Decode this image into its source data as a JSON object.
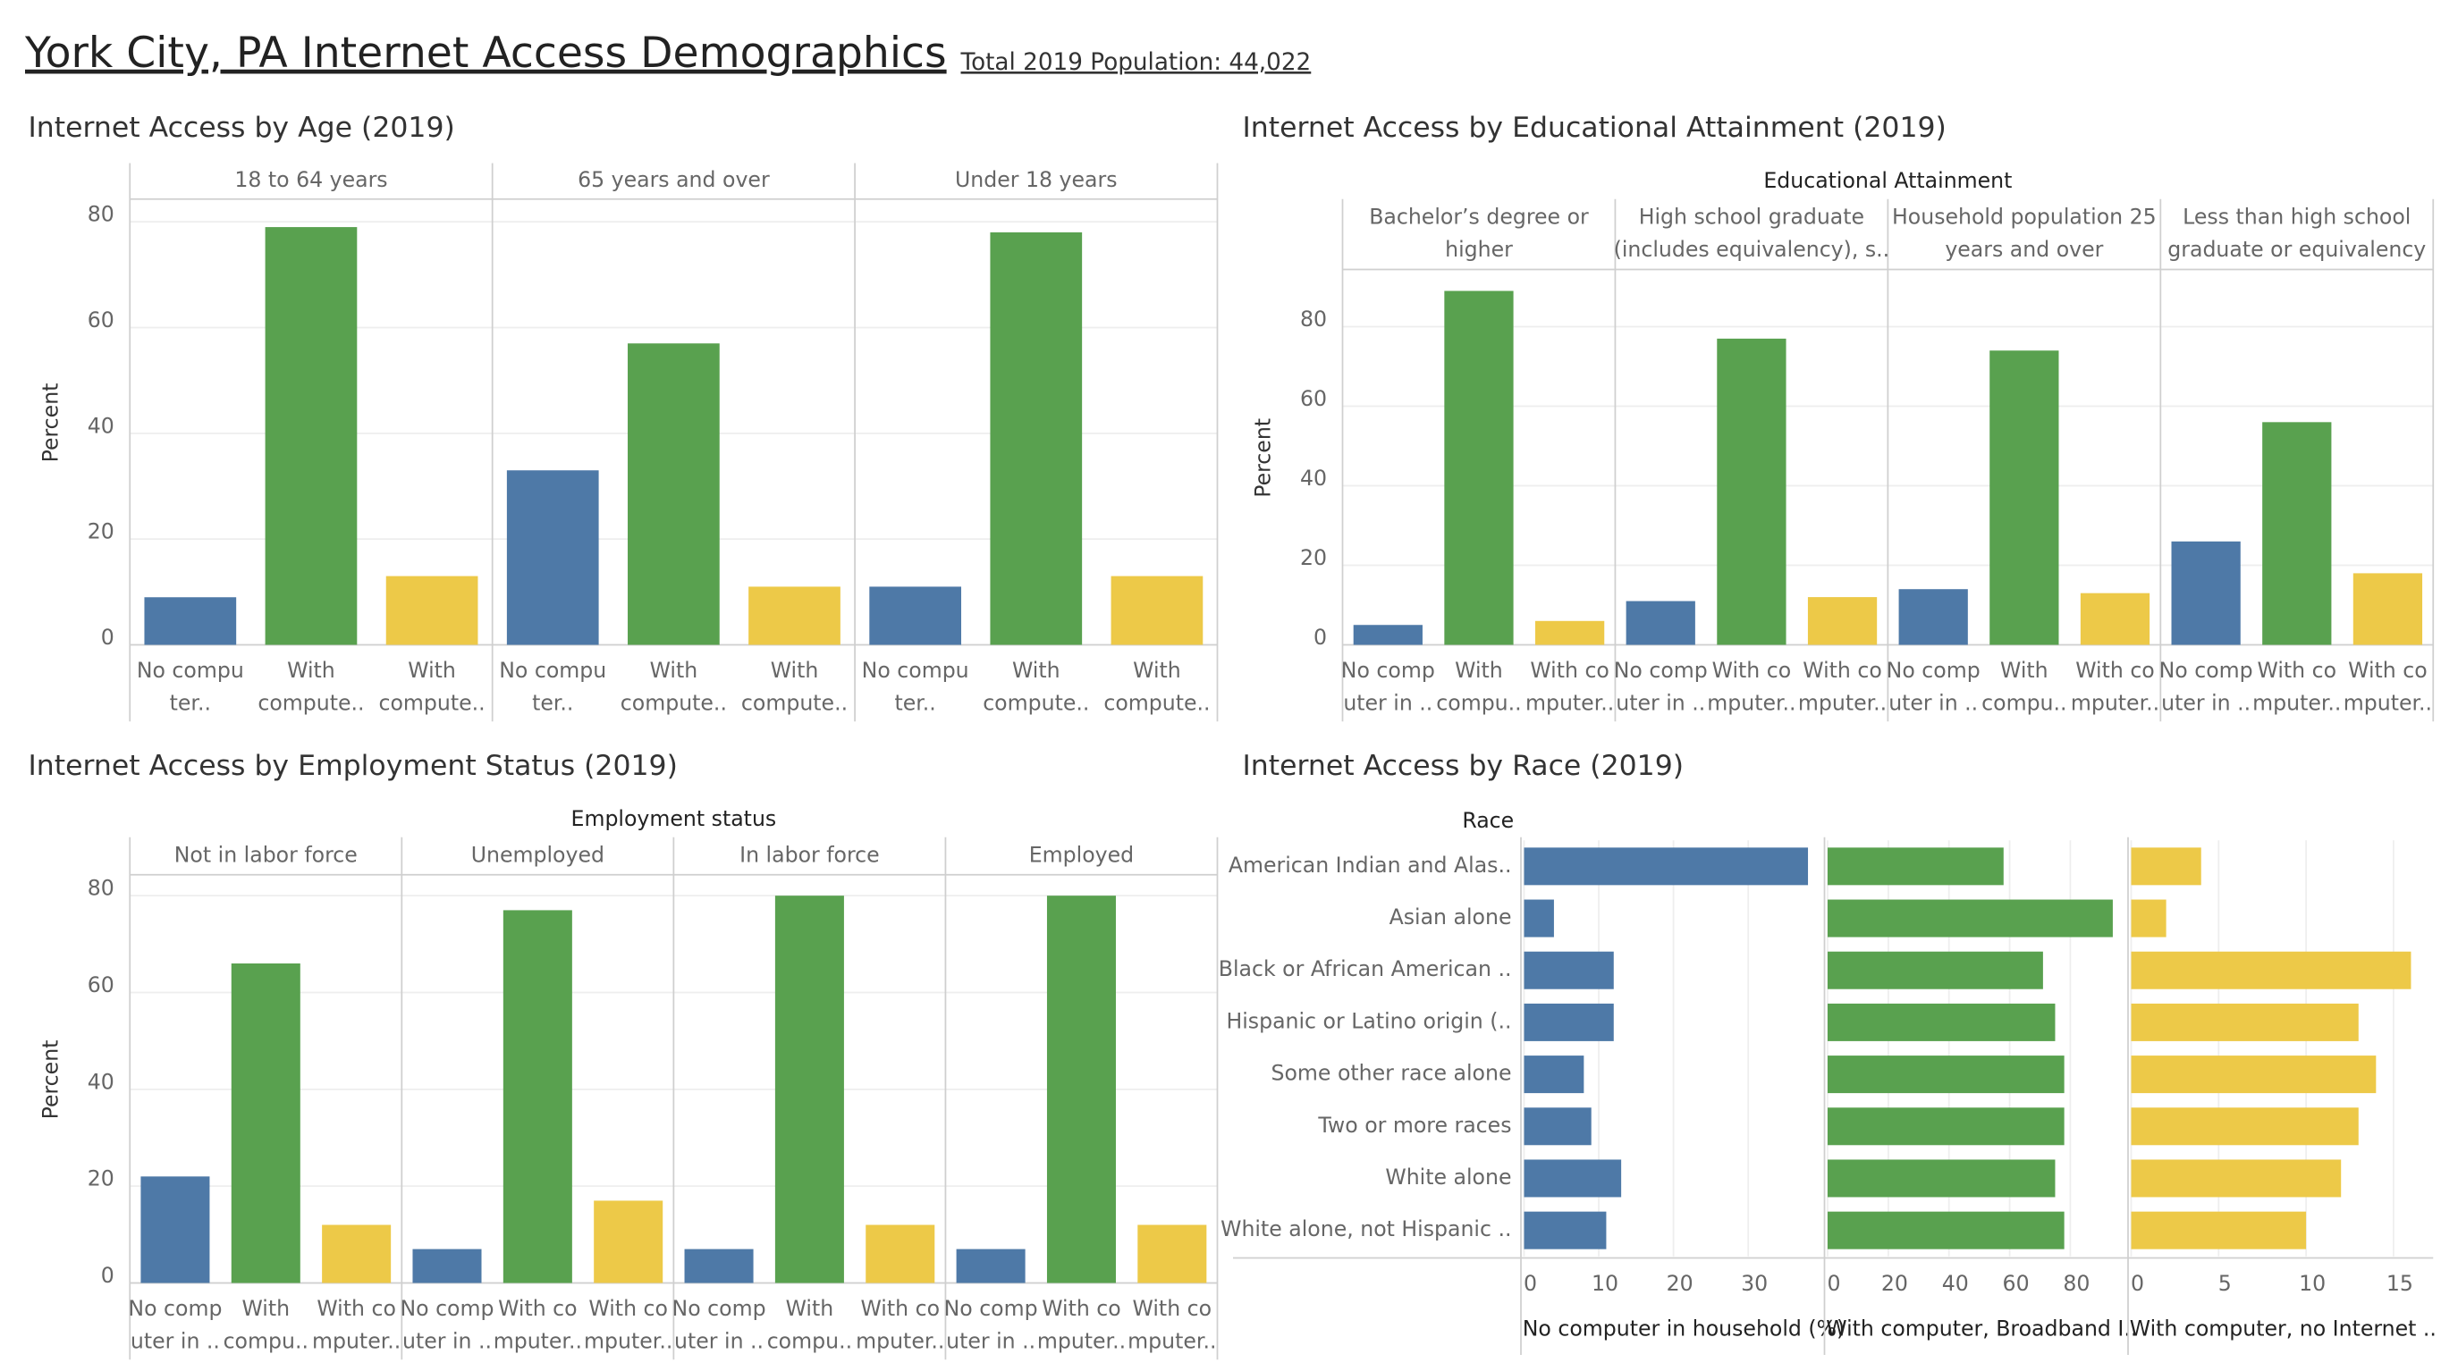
{
  "dashboard": {
    "title": "York City, PA Internet Access Demographics",
    "population_note": "Total 2019 Population: 44,022"
  },
  "chart_data": [
    {
      "type": "faceted_bar",
      "title": "Internet Access by Age (2019)",
      "ylabel": "Percent",
      "colors": [
        "#4e79a7",
        "#59a14f",
        "#edc948"
      ],
      "ylim": [
        0,
        84
      ],
      "yticks": [
        0,
        20,
        40,
        60,
        80
      ],
      "grid": true,
      "facets": [
        {
          "name": [
            "18 to 64 years"
          ],
          "labels": [
            [
              "No compu",
              "ter.."
            ],
            [
              "With",
              "compute.."
            ],
            [
              "With",
              "compute.."
            ]
          ],
          "values": [
            9,
            79,
            13
          ]
        },
        {
          "name": [
            "65 years and over"
          ],
          "labels": [
            [
              "No compu",
              "ter.."
            ],
            [
              "With",
              "compute.."
            ],
            [
              "With",
              "compute.."
            ]
          ],
          "values": [
            33,
            57,
            11
          ]
        },
        {
          "name": [
            "Under 18 years"
          ],
          "labels": [
            [
              "No compu",
              "ter.."
            ],
            [
              "With",
              "compute.."
            ],
            [
              "With",
              "compute.."
            ]
          ],
          "values": [
            11,
            78,
            13
          ]
        }
      ]
    },
    {
      "type": "faceted_bar",
      "title": "Internet Access by Educational Attainment (2019)",
      "ylabel": "Percent",
      "facet_title": "Educational Attainment",
      "colors": [
        "#4e79a7",
        "#59a14f",
        "#edc948"
      ],
      "ylim": [
        0,
        94
      ],
      "yticks": [
        0,
        20,
        40,
        60,
        80
      ],
      "grid": true,
      "facets": [
        {
          "name": [
            "Bachelor’s degree or",
            "higher"
          ],
          "labels": [
            [
              "No comp",
              "uter in .."
            ],
            [
              "With",
              "compu.."
            ],
            [
              "With co",
              "mputer.."
            ]
          ],
          "values": [
            5,
            89,
            6
          ]
        },
        {
          "name": [
            "High school graduate",
            "(includes equivalency), s.."
          ],
          "labels": [
            [
              "No comp",
              "uter in .."
            ],
            [
              "With co",
              "mputer.."
            ],
            [
              "With co",
              "mputer.."
            ]
          ],
          "values": [
            11,
            77,
            12
          ]
        },
        {
          "name": [
            "Household population 25",
            "years and over"
          ],
          "labels": [
            [
              "No comp",
              "uter in .."
            ],
            [
              "With",
              "compu.."
            ],
            [
              "With co",
              "mputer.."
            ]
          ],
          "values": [
            14,
            74,
            13
          ]
        },
        {
          "name": [
            "Less than high school",
            "graduate or equivalency"
          ],
          "labels": [
            [
              "No comp",
              "uter in .."
            ],
            [
              "With co",
              "mputer.."
            ],
            [
              "With co",
              "mputer.."
            ]
          ],
          "values": [
            26,
            56,
            18
          ]
        }
      ]
    },
    {
      "type": "faceted_bar",
      "title": "Internet Access by Employment Status (2019)",
      "ylabel": "Percent",
      "facet_title": "Employment status",
      "colors": [
        "#4e79a7",
        "#59a14f",
        "#edc948"
      ],
      "ylim": [
        0,
        84
      ],
      "yticks": [
        0,
        20,
        40,
        60,
        80
      ],
      "grid": true,
      "facets": [
        {
          "name": [
            "Not in labor force"
          ],
          "labels": [
            [
              "No comp",
              "uter in .."
            ],
            [
              "With",
              "compu.."
            ],
            [
              "With co",
              "mputer.."
            ]
          ],
          "values": [
            22,
            66,
            12
          ]
        },
        {
          "name": [
            "Unemployed"
          ],
          "labels": [
            [
              "No comp",
              "uter in .."
            ],
            [
              "With co",
              "mputer.."
            ],
            [
              "With co",
              "mputer.."
            ]
          ],
          "values": [
            7,
            77,
            17
          ]
        },
        {
          "name": [
            "In labor force"
          ],
          "labels": [
            [
              "No comp",
              "uter in .."
            ],
            [
              "With",
              "compu.."
            ],
            [
              "With co",
              "mputer.."
            ]
          ],
          "values": [
            7,
            80,
            12
          ]
        },
        {
          "name": [
            "Employed"
          ],
          "labels": [
            [
              "No comp",
              "uter in .."
            ],
            [
              "With co",
              "mputer.."
            ],
            [
              "With co",
              "mputer.."
            ]
          ],
          "values": [
            7,
            80,
            12
          ]
        }
      ]
    },
    {
      "type": "hbar_panels",
      "title": "Internet Access by Race (2019)",
      "row_title": "Race",
      "grid": true,
      "categories": [
        "American Indian and Alas..",
        "Asian alone",
        "Black or African American ..",
        "Hispanic or Latino origin (..",
        "Some other race alone",
        "Two or more races",
        "White alone",
        "White alone, not Hispanic .."
      ],
      "series": [
        {
          "name": "No computer in household (%)",
          "color": "#4e79a7",
          "values": [
            38,
            4,
            12,
            12,
            8,
            9,
            13,
            11
          ],
          "xlim": [
            0,
            40
          ],
          "xticks": [
            0,
            10,
            20,
            30
          ]
        },
        {
          "name": "With computer, Broadband I..",
          "color": "#59a14f",
          "values": [
            58,
            94,
            71,
            75,
            78,
            78,
            75,
            78
          ],
          "xlim": [
            0,
            98
          ],
          "xticks": [
            0,
            20,
            40,
            60,
            80
          ]
        },
        {
          "name": "With computer, no Internet ..",
          "color": "#edc948",
          "values": [
            4,
            2,
            16,
            13,
            14,
            13,
            12,
            10
          ],
          "xlim": [
            0,
            17
          ],
          "xticks": [
            0,
            5,
            10,
            15
          ]
        }
      ]
    }
  ]
}
